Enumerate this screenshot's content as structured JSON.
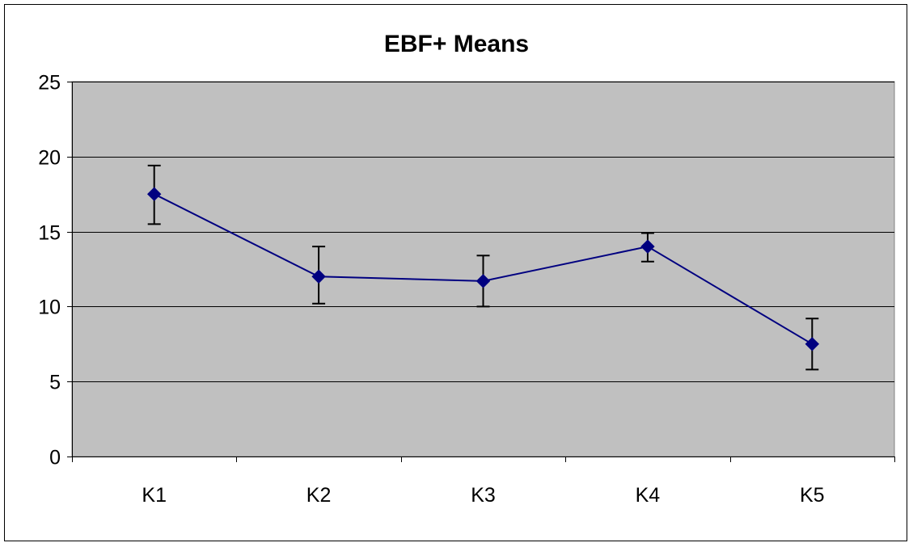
{
  "chart_data": {
    "type": "line",
    "title": "EBF+ Means",
    "xlabel": "",
    "ylabel": "",
    "categories": [
      "K1",
      "K2",
      "K3",
      "K4",
      "K5"
    ],
    "series": [
      {
        "values": [
          17.5,
          12.0,
          11.7,
          14.0,
          7.5
        ],
        "error_low": [
          15.5,
          10.2,
          10.0,
          13.0,
          5.8
        ],
        "error_high": [
          19.4,
          14.0,
          13.4,
          14.9,
          9.2
        ]
      }
    ],
    "ylim": [
      0,
      25
    ],
    "yticks": [
      0,
      5,
      10,
      15,
      20,
      25
    ],
    "grid": true,
    "legend": "none",
    "colors": {
      "plot_background": "#c0c0c0",
      "series_line": "#000080",
      "marker": "#000080",
      "error_bar": "#000000",
      "grid": "#000000"
    }
  }
}
